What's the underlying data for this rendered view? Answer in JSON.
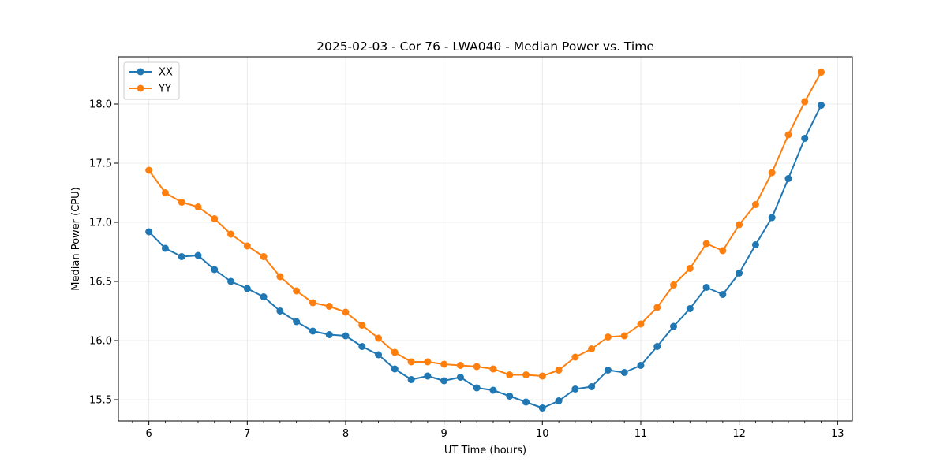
{
  "chart_data": {
    "type": "line",
    "title": "2025-02-03 - Cor 76 - LWA040 - Median Power vs. Time",
    "xlabel": "UT Time (hours)",
    "ylabel": "Median Power (CPU)",
    "xlim": [
      5.69,
      13.15
    ],
    "ylim": [
      15.32,
      18.4
    ],
    "xticks": [
      6,
      7,
      8,
      9,
      10,
      11,
      12,
      13
    ],
    "xtick_labels": [
      "6",
      "7",
      "8",
      "9",
      "10",
      "11",
      "12",
      "13"
    ],
    "yticks": [
      15.5,
      16.0,
      16.5,
      17.0,
      17.5,
      18.0
    ],
    "ytick_labels": [
      "15.5",
      "16.0",
      "16.5",
      "17.0",
      "17.5",
      "18.0"
    ],
    "grid": true,
    "legend_position": "top-left",
    "x": [
      6.0,
      6.1667,
      6.3333,
      6.5,
      6.6667,
      6.8333,
      7.0,
      7.1667,
      7.3333,
      7.5,
      7.6667,
      7.8333,
      8.0,
      8.1667,
      8.3333,
      8.5,
      8.6667,
      8.8333,
      9.0,
      9.1667,
      9.3333,
      9.5,
      9.6667,
      9.8333,
      10.0,
      10.1667,
      10.3333,
      10.5,
      10.6667,
      10.8333,
      11.0,
      11.1667,
      11.3333,
      11.5,
      11.6667,
      11.8333,
      12.0,
      12.1667,
      12.3333,
      12.5,
      12.6667,
      12.8333
    ],
    "series": [
      {
        "name": "XX",
        "color": "#1f77b4",
        "values": [
          16.92,
          16.78,
          16.71,
          16.72,
          16.6,
          16.5,
          16.44,
          16.37,
          16.25,
          16.16,
          16.08,
          16.05,
          16.04,
          15.95,
          15.88,
          15.76,
          15.67,
          15.7,
          15.66,
          15.69,
          15.6,
          15.58,
          15.53,
          15.48,
          15.43,
          15.49,
          15.59,
          15.61,
          15.75,
          15.73,
          15.79,
          15.95,
          16.12,
          16.27,
          16.45,
          16.39,
          16.57,
          16.81,
          17.04,
          17.37,
          17.71,
          17.99
        ]
      },
      {
        "name": "YY",
        "color": "#ff7f0e",
        "values": [
          17.44,
          17.25,
          17.17,
          17.13,
          17.03,
          16.9,
          16.8,
          16.71,
          16.54,
          16.42,
          16.32,
          16.29,
          16.24,
          16.13,
          16.02,
          15.9,
          15.82,
          15.82,
          15.8,
          15.79,
          15.78,
          15.76,
          15.71,
          15.71,
          15.7,
          15.75,
          15.86,
          15.93,
          16.03,
          16.04,
          16.14,
          16.28,
          16.47,
          16.61,
          16.82,
          16.76,
          16.98,
          17.15,
          17.42,
          17.74,
          18.02,
          18.27
        ]
      }
    ]
  }
}
